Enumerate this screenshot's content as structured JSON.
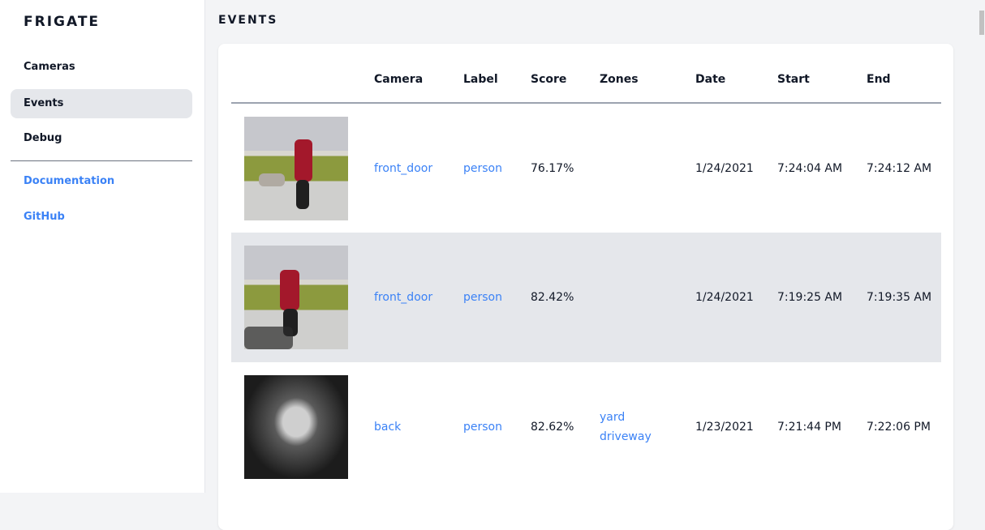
{
  "sidebar": {
    "logo": "FRIGATE",
    "items": [
      {
        "label": "Cameras"
      },
      {
        "label": "Events"
      },
      {
        "label": "Debug"
      }
    ],
    "links": [
      {
        "label": "Documentation"
      },
      {
        "label": "GitHub"
      }
    ]
  },
  "page": {
    "title": "EVENTS"
  },
  "table": {
    "headers": [
      "",
      "Camera",
      "Label",
      "Score",
      "Zones",
      "Date",
      "Start",
      "End"
    ],
    "rows": [
      {
        "camera": "front_door",
        "label": "person",
        "score": "76.17%",
        "zones": [
          "",
          ""
        ],
        "date": "1/24/2021",
        "start": "7:24:04 AM",
        "end": "7:24:12 AM"
      },
      {
        "camera": "front_door",
        "label": "person",
        "score": "82.42%",
        "zones": [
          "",
          ""
        ],
        "date": "1/24/2021",
        "start": "7:19:25 AM",
        "end": "7:19:35 AM"
      },
      {
        "camera": "back",
        "label": "person",
        "score": "82.62%",
        "zones": [
          "yard",
          "driveway"
        ],
        "date": "1/23/2021",
        "start": "7:21:44 PM",
        "end": "7:22:06 PM"
      }
    ]
  },
  "colors": {
    "accent": "#3b82f6",
    "selected_row": "#e5e7eb",
    "background": "#f3f4f6"
  }
}
